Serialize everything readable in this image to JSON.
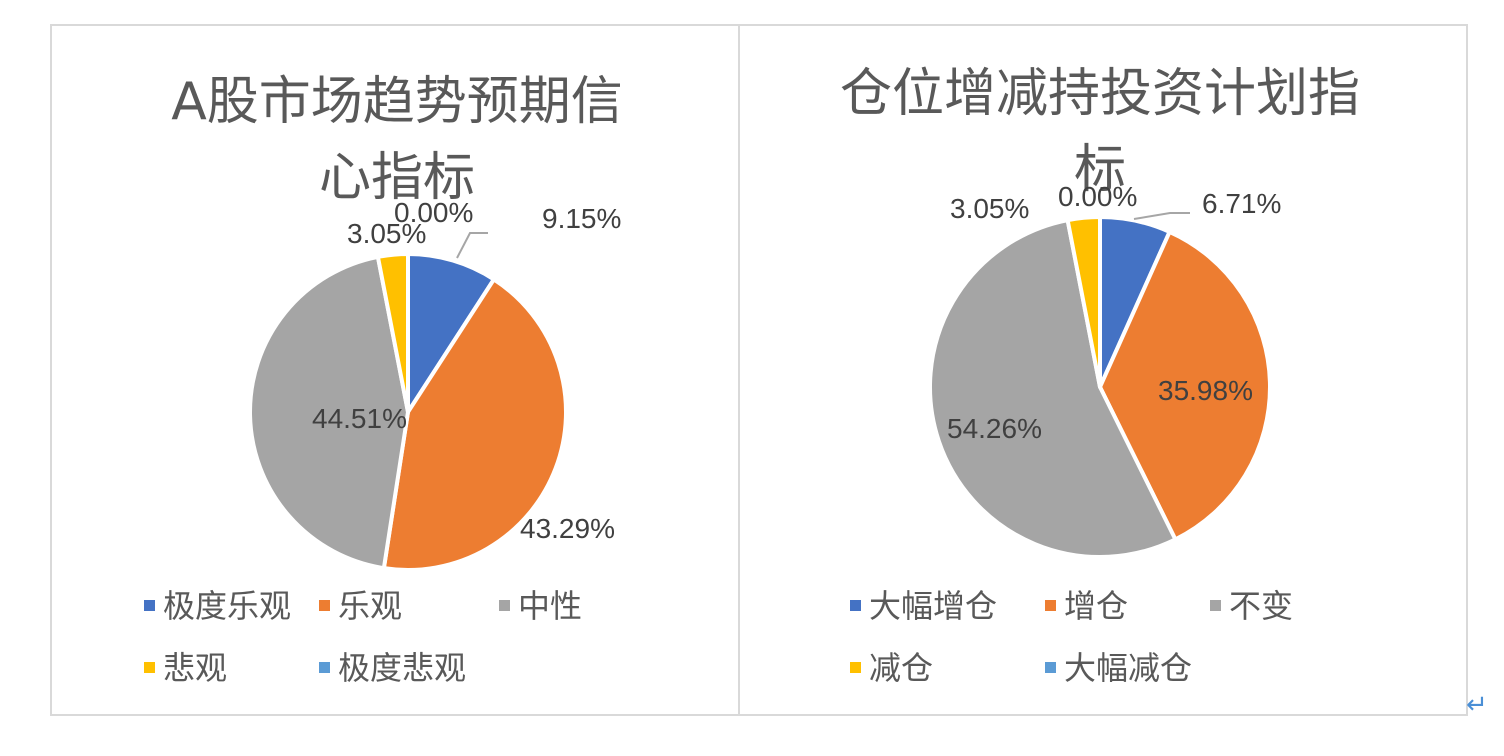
{
  "chart_data": [
    {
      "type": "pie",
      "title": "A股市场趋势预期信心指标",
      "categories": [
        "极度乐观",
        "乐观",
        "中性",
        "悲观",
        "极度悲观"
      ],
      "values": [
        9.15,
        43.29,
        44.51,
        3.05,
        0.0
      ],
      "labels": [
        "9.15%",
        "43.29%",
        "44.51%",
        "3.05%",
        "0.00%"
      ],
      "colors": [
        "#4472c4",
        "#ed7d31",
        "#a5a5a5",
        "#ffc000",
        "#5b9bd5"
      ],
      "legend_position": "bottom"
    },
    {
      "type": "pie",
      "title": "仓位增减持投资计划指标",
      "categories": [
        "大幅增仓",
        "增仓",
        "不变",
        "减仓",
        "大幅减仓"
      ],
      "values": [
        6.71,
        35.98,
        54.26,
        3.05,
        0.0
      ],
      "labels": [
        "6.71%",
        "35.98%",
        "54.26%",
        "3.05%",
        "0.00%"
      ],
      "colors": [
        "#4472c4",
        "#ed7d31",
        "#a5a5a5",
        "#ffc000",
        "#5b9bd5"
      ],
      "legend_position": "bottom"
    }
  ],
  "return_mark": "↵"
}
